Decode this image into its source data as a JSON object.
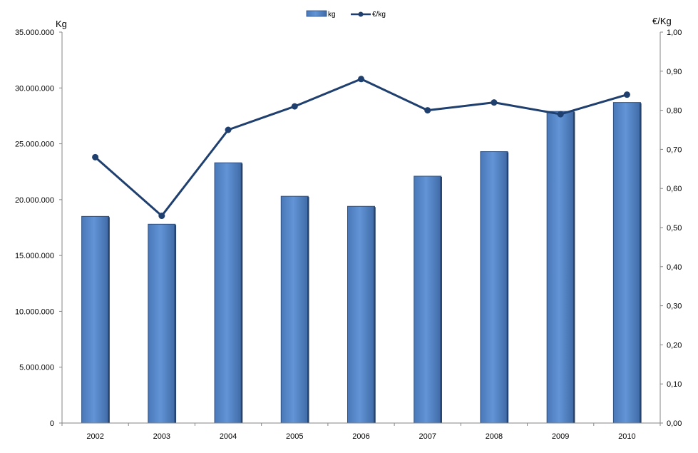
{
  "chart_data": {
    "type": "bar",
    "categories": [
      "2002",
      "2003",
      "2004",
      "2005",
      "2006",
      "2007",
      "2008",
      "2009",
      "2010"
    ],
    "series": [
      {
        "name": "kg",
        "type": "bar",
        "axis": "left",
        "values": [
          18500000,
          17800000,
          23300000,
          20300000,
          19400000,
          22100000,
          24300000,
          27900000,
          28700000
        ]
      },
      {
        "name": "€/kg",
        "type": "line",
        "axis": "right",
        "values": [
          0.68,
          0.53,
          0.75,
          0.81,
          0.88,
          0.8,
          0.82,
          0.79,
          0.84
        ]
      }
    ],
    "ylabel_left": "Kg",
    "ylabel_right": "€/Kg",
    "ylim_left": [
      0,
      35000000
    ],
    "ylim_right": [
      0,
      1.0
    ],
    "yticks_left": [
      "0",
      "5.000.000",
      "10.000.000",
      "15.000.000",
      "20.000.000",
      "25.000.000",
      "30.000.000",
      "35.000.000"
    ],
    "yticks_right": [
      "0,00",
      "0,10",
      "0,20",
      "0,30",
      "0,40",
      "0,50",
      "0,60",
      "0,70",
      "0,80",
      "0,90",
      "1,00"
    ],
    "grid": false,
    "legend_position": "top-center",
    "colors": {
      "bar": "#5b8bcc",
      "bar_edge": "#2e4f80",
      "line": "#1f3f6e"
    }
  }
}
